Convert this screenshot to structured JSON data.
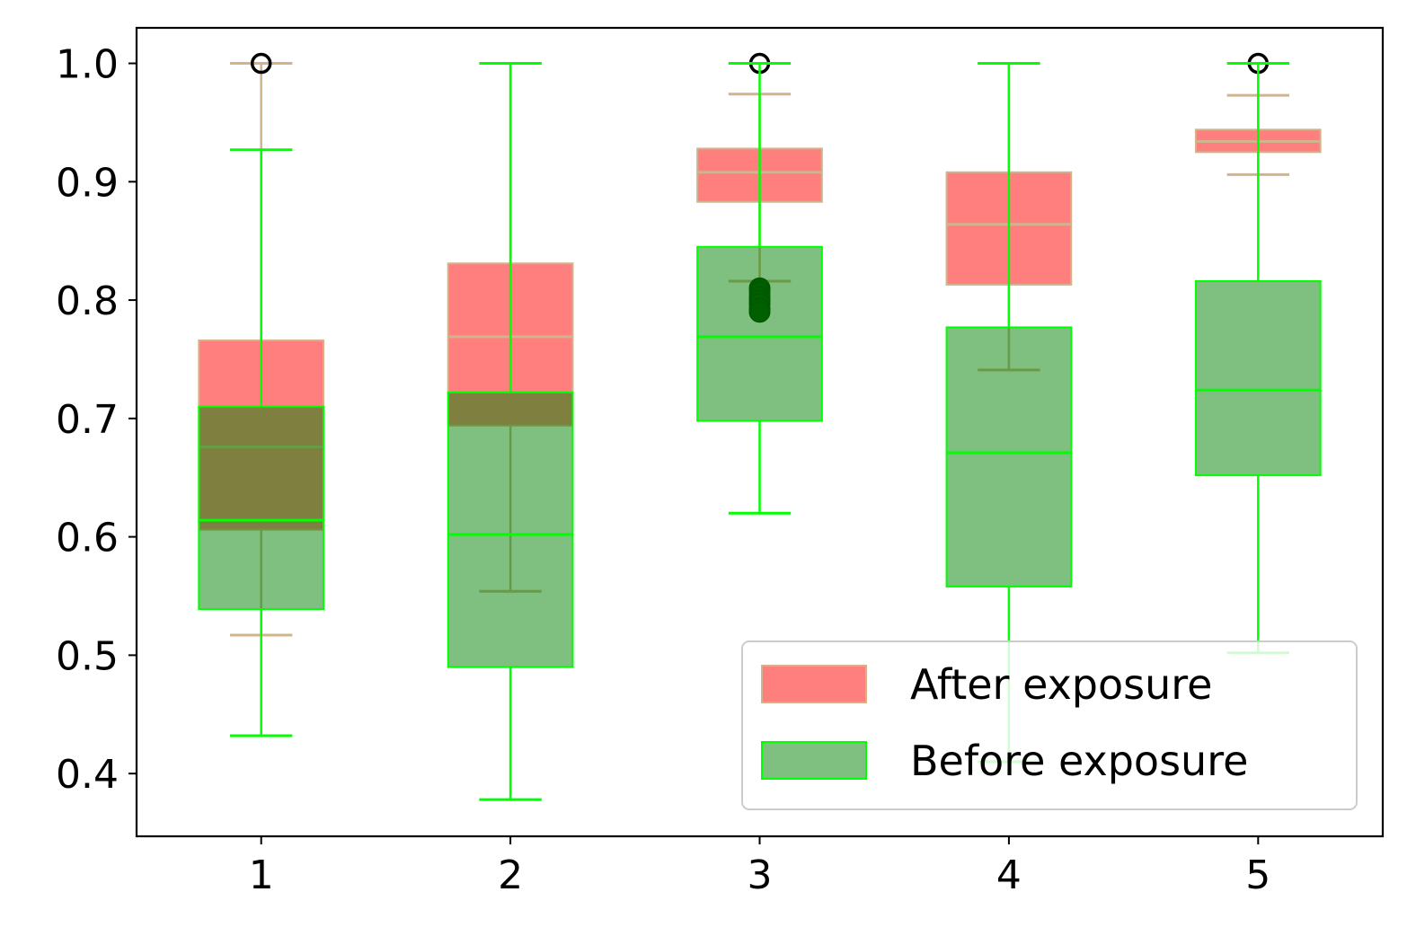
{
  "chart_data": {
    "type": "boxplot",
    "title": "",
    "xlabel": "",
    "ylabel": "",
    "categories": [
      "1",
      "2",
      "3",
      "4",
      "5"
    ],
    "x_ticks": [
      "1",
      "2",
      "3",
      "4",
      "5"
    ],
    "y_ticks": [
      "0.4",
      "0.5",
      "0.6",
      "0.7",
      "0.8",
      "0.9",
      "1.0"
    ],
    "ylim": [
      0.347,
      1.03
    ],
    "legend": {
      "position": "lower right",
      "entries": [
        "After exposure",
        "Before exposure"
      ]
    },
    "series": [
      {
        "name": "After exposure",
        "face_color": "#ff0000",
        "face_alpha": 0.5,
        "line_color": "#d2b48c",
        "boxes": [
          {
            "whislo": 0.517,
            "q1": 0.606,
            "med": 0.676,
            "q3": 0.766,
            "whishi": 1.0,
            "fliers": [
              1.0
            ]
          },
          {
            "whislo": 0.554,
            "q1": 0.694,
            "med": 0.769,
            "q3": 0.831,
            "whishi": 1.0,
            "fliers": []
          },
          {
            "whislo": 0.816,
            "q1": 0.883,
            "med": 0.908,
            "q3": 0.928,
            "whishi": 0.974,
            "fliers": [
              1.0,
              0.81,
              0.807,
              0.803,
              0.8,
              0.797,
              0.793,
              0.79
            ]
          },
          {
            "whislo": 0.741,
            "q1": 0.813,
            "med": 0.864,
            "q3": 0.908,
            "whishi": 1.0,
            "fliers": []
          },
          {
            "whislo": 0.906,
            "q1": 0.925,
            "med": 0.934,
            "q3": 0.944,
            "whishi": 0.973,
            "fliers": [
              1.0
            ]
          }
        ]
      },
      {
        "name": "Before exposure",
        "face_color": "#008000",
        "face_alpha": 0.5,
        "line_color": "#00ff00",
        "boxes": [
          {
            "whislo": 0.432,
            "q1": 0.539,
            "med": 0.614,
            "q3": 0.71,
            "whishi": 0.927,
            "fliers": []
          },
          {
            "whislo": 0.378,
            "q1": 0.49,
            "med": 0.602,
            "q3": 0.722,
            "whishi": 1.0,
            "fliers": []
          },
          {
            "whislo": 0.62,
            "q1": 0.698,
            "med": 0.769,
            "q3": 0.845,
            "whishi": 1.0,
            "fliers": []
          },
          {
            "whislo": 0.41,
            "q1": 0.558,
            "med": 0.671,
            "q3": 0.777,
            "whishi": 1.0,
            "fliers": []
          },
          {
            "whislo": 0.502,
            "q1": 0.652,
            "med": 0.724,
            "q3": 0.816,
            "whishi": 1.0,
            "fliers": []
          }
        ]
      }
    ]
  }
}
